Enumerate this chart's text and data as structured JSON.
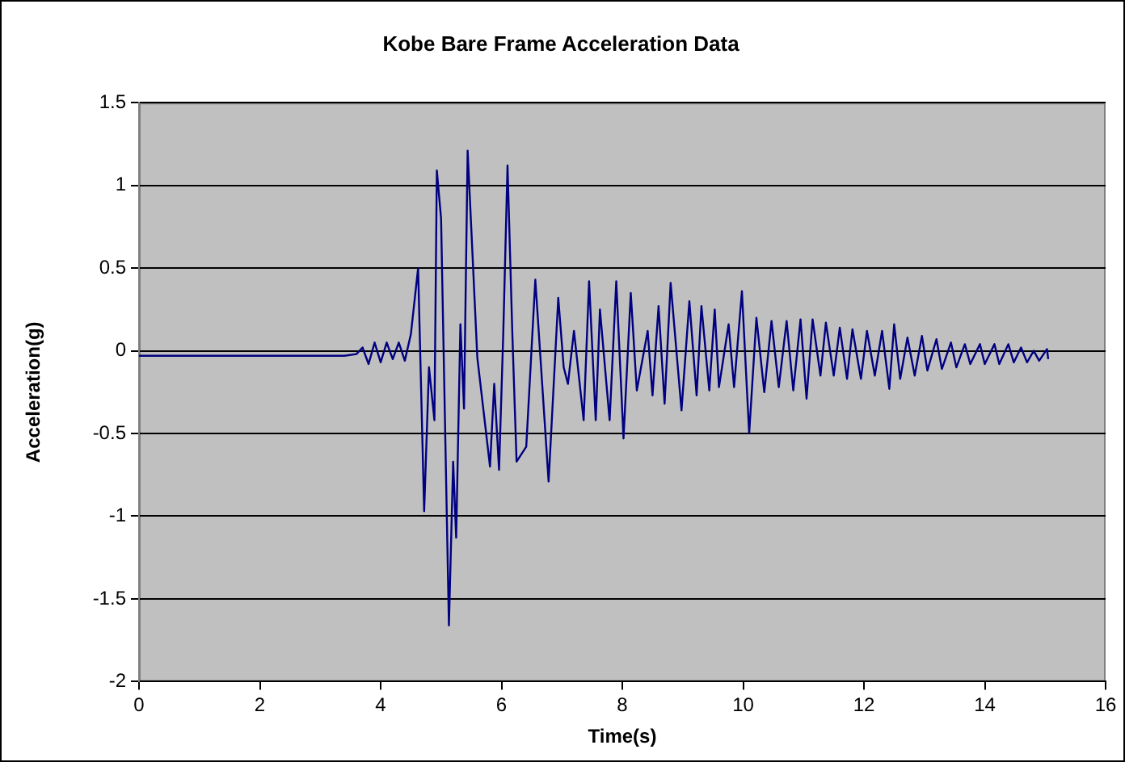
{
  "chart_data": {
    "type": "line",
    "title": "Kobe Bare Frame Acceleration Data",
    "xlabel": "Time(s)",
    "ylabel": "Acceleration(g)",
    "xlim": [
      0,
      16
    ],
    "xticks": [
      0,
      2,
      4,
      6,
      8,
      10,
      12,
      14,
      16
    ],
    "ylim": [
      -2,
      1.5
    ],
    "yticks": [
      -2,
      -1.5,
      -1,
      -0.5,
      0,
      0.5,
      1,
      1.5
    ],
    "grid": "y",
    "legend": false,
    "marker": "none",
    "line_style": "solid",
    "series": [
      {
        "color": "#000080",
        "x": [
          0,
          0.5,
          1,
          1.5,
          2,
          2.5,
          3,
          3.4,
          3.6,
          3.7,
          3.8,
          3.9,
          4.0,
          4.1,
          4.2,
          4.3,
          4.4,
          4.5,
          4.62,
          4.72,
          4.8,
          4.89,
          4.93,
          5.0,
          5.13,
          5.2,
          5.25,
          5.32,
          5.38,
          5.44,
          5.6,
          5.81,
          5.88,
          5.96,
          6.03,
          6.1,
          6.18,
          6.25,
          6.41,
          6.56,
          6.78,
          6.94,
          7.03,
          7.1,
          7.2,
          7.36,
          7.45,
          7.56,
          7.63,
          7.79,
          7.9,
          8.02,
          8.14,
          8.24,
          8.42,
          8.5,
          8.6,
          8.7,
          8.8,
          8.98,
          9.11,
          9.23,
          9.31,
          9.44,
          9.53,
          9.6,
          9.76,
          9.85,
          9.98,
          10.1,
          10.22,
          10.35,
          10.47,
          10.59,
          10.72,
          10.83,
          10.95,
          11.05,
          11.15,
          11.28,
          11.37,
          11.5,
          11.6,
          11.72,
          11.81,
          11.95,
          12.05,
          12.18,
          12.3,
          12.42,
          12.5,
          12.6,
          12.72,
          12.84,
          12.96,
          13.05,
          13.2,
          13.29,
          13.44,
          13.53,
          13.67,
          13.76,
          13.92,
          14.0,
          14.16,
          14.24,
          14.39,
          14.48,
          14.6,
          14.7,
          14.81,
          14.9,
          15.03,
          15.05
        ],
        "values": [
          -0.03,
          -0.03,
          -0.03,
          -0.03,
          -0.03,
          -0.03,
          -0.03,
          -0.03,
          -0.02,
          0.02,
          -0.08,
          0.05,
          -0.07,
          0.05,
          -0.05,
          0.05,
          -0.06,
          0.1,
          0.5,
          -0.97,
          -0.1,
          -0.42,
          1.09,
          0.8,
          -1.66,
          -0.67,
          -1.13,
          0.16,
          -0.35,
          1.21,
          -0.04,
          -0.7,
          -0.2,
          -0.72,
          0.11,
          1.12,
          0.1,
          -0.67,
          -0.58,
          0.43,
          -0.79,
          0.32,
          -0.1,
          -0.2,
          0.12,
          -0.42,
          0.42,
          -0.42,
          0.25,
          -0.42,
          0.42,
          -0.53,
          0.35,
          -0.24,
          0.12,
          -0.27,
          0.27,
          -0.32,
          0.41,
          -0.36,
          0.3,
          -0.27,
          0.27,
          -0.24,
          0.25,
          -0.22,
          0.16,
          -0.22,
          0.36,
          -0.5,
          0.2,
          -0.25,
          0.18,
          -0.22,
          0.18,
          -0.24,
          0.19,
          -0.29,
          0.19,
          -0.15,
          0.17,
          -0.15,
          0.14,
          -0.17,
          0.13,
          -0.17,
          0.12,
          -0.15,
          0.12,
          -0.23,
          0.16,
          -0.17,
          0.08,
          -0.15,
          0.09,
          -0.12,
          0.07,
          -0.11,
          0.05,
          -0.1,
          0.04,
          -0.08,
          0.04,
          -0.08,
          0.04,
          -0.08,
          0.04,
          -0.07,
          0.02,
          -0.07,
          0.0,
          -0.06,
          0.01,
          -0.05
        ]
      }
    ]
  }
}
